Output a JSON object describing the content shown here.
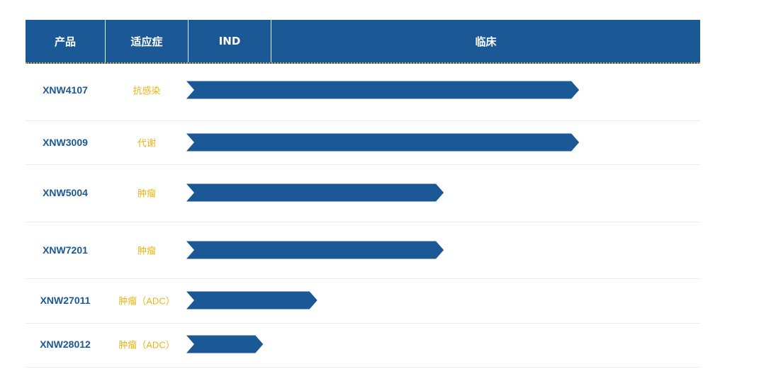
{
  "header": {
    "col_product": "产品",
    "col_indication": "适应症",
    "col_ind": "IND",
    "col_clinical": "临床"
  },
  "colors": {
    "header_bg": "#1B5896",
    "bar": "#1B5896",
    "indication_text": "#E7B417",
    "product_text": "#1B5896"
  },
  "chart_data": {
    "type": "bar",
    "orientation": "horizontal",
    "stages": [
      "IND",
      "临床"
    ],
    "rows": [
      {
        "product": "XNW4107",
        "indication": "抗感染",
        "progress": 0.87
      },
      {
        "product": "XNW3009",
        "indication": "代谢",
        "progress": 0.87
      },
      {
        "product": "XNW5004",
        "indication": "肿瘤",
        "progress": 0.57
      },
      {
        "product": "XNW7201",
        "indication": "肿瘤",
        "progress": 0.57
      },
      {
        "product": "XNW27011",
        "indication": "肿瘤（ADC）",
        "progress": 0.29
      },
      {
        "product": "XNW28012",
        "indication": "肿瘤（ADC）",
        "progress": 0.17
      }
    ]
  }
}
